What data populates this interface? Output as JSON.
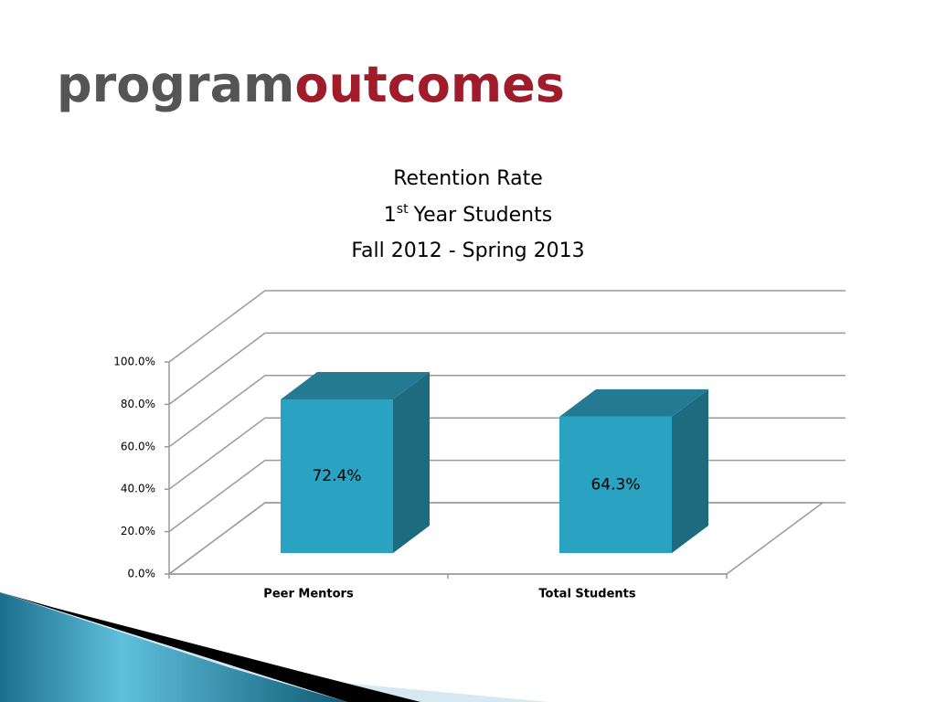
{
  "slide": {
    "title_gray": "program",
    "title_red": "outcomes"
  },
  "chart_data": {
    "type": "bar3d",
    "title": {
      "line1": "Retention Rate",
      "line2": {
        "number": "1",
        "suffix": "st",
        "rest": "Year Students"
      },
      "line3": "Fall 2012 -  Spring 2013"
    },
    "categories": [
      "Peer Mentors",
      "Total Students"
    ],
    "values": [
      72.4,
      64.3
    ],
    "value_labels": [
      "72.4%",
      "64.3%"
    ],
    "color": "#2aa3c2",
    "ylim": [
      0,
      100
    ],
    "yticks": [
      {
        "value": 0,
        "label": "0.0%"
      },
      {
        "value": 20,
        "label": "20.0%"
      },
      {
        "value": 40,
        "label": "40.0%"
      },
      {
        "value": 60,
        "label": "60.0%"
      },
      {
        "value": 80,
        "label": "80.0%"
      },
      {
        "value": 100,
        "label": "100.0%"
      }
    ],
    "grid": true
  }
}
